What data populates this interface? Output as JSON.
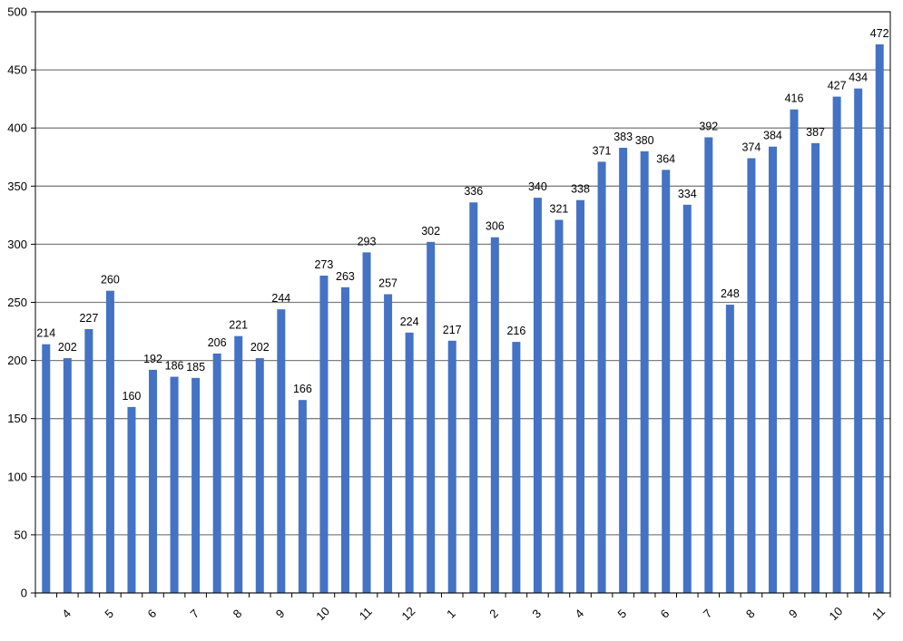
{
  "chart_data": {
    "type": "bar",
    "title": "",
    "xlabel": "",
    "ylabel": "",
    "ylim": [
      0,
      500
    ],
    "yticks": [
      0,
      50,
      100,
      150,
      200,
      250,
      300,
      350,
      400,
      450,
      500
    ],
    "grid": true,
    "legend": "none",
    "bar_color": "#4472C4",
    "grid_color": "#808080",
    "values": [
      214,
      202,
      227,
      260,
      160,
      192,
      186,
      185,
      206,
      221,
      202,
      244,
      166,
      273,
      263,
      293,
      257,
      224,
      302,
      217,
      336,
      306,
      216,
      340,
      321,
      338,
      371,
      383,
      380,
      364,
      334,
      392,
      248,
      374,
      384,
      416,
      387,
      427,
      434,
      472
    ],
    "category_labels": [
      "",
      "4",
      "",
      "5",
      "",
      "6",
      "",
      "7",
      "",
      "8",
      "",
      "9",
      "",
      "10",
      "",
      "11",
      "",
      "12",
      "",
      "1",
      "",
      "2",
      "",
      "3",
      "",
      "4",
      "",
      "5",
      "",
      "6",
      "",
      "7",
      "",
      "8",
      "",
      "9",
      "",
      "10",
      "",
      "11"
    ]
  }
}
